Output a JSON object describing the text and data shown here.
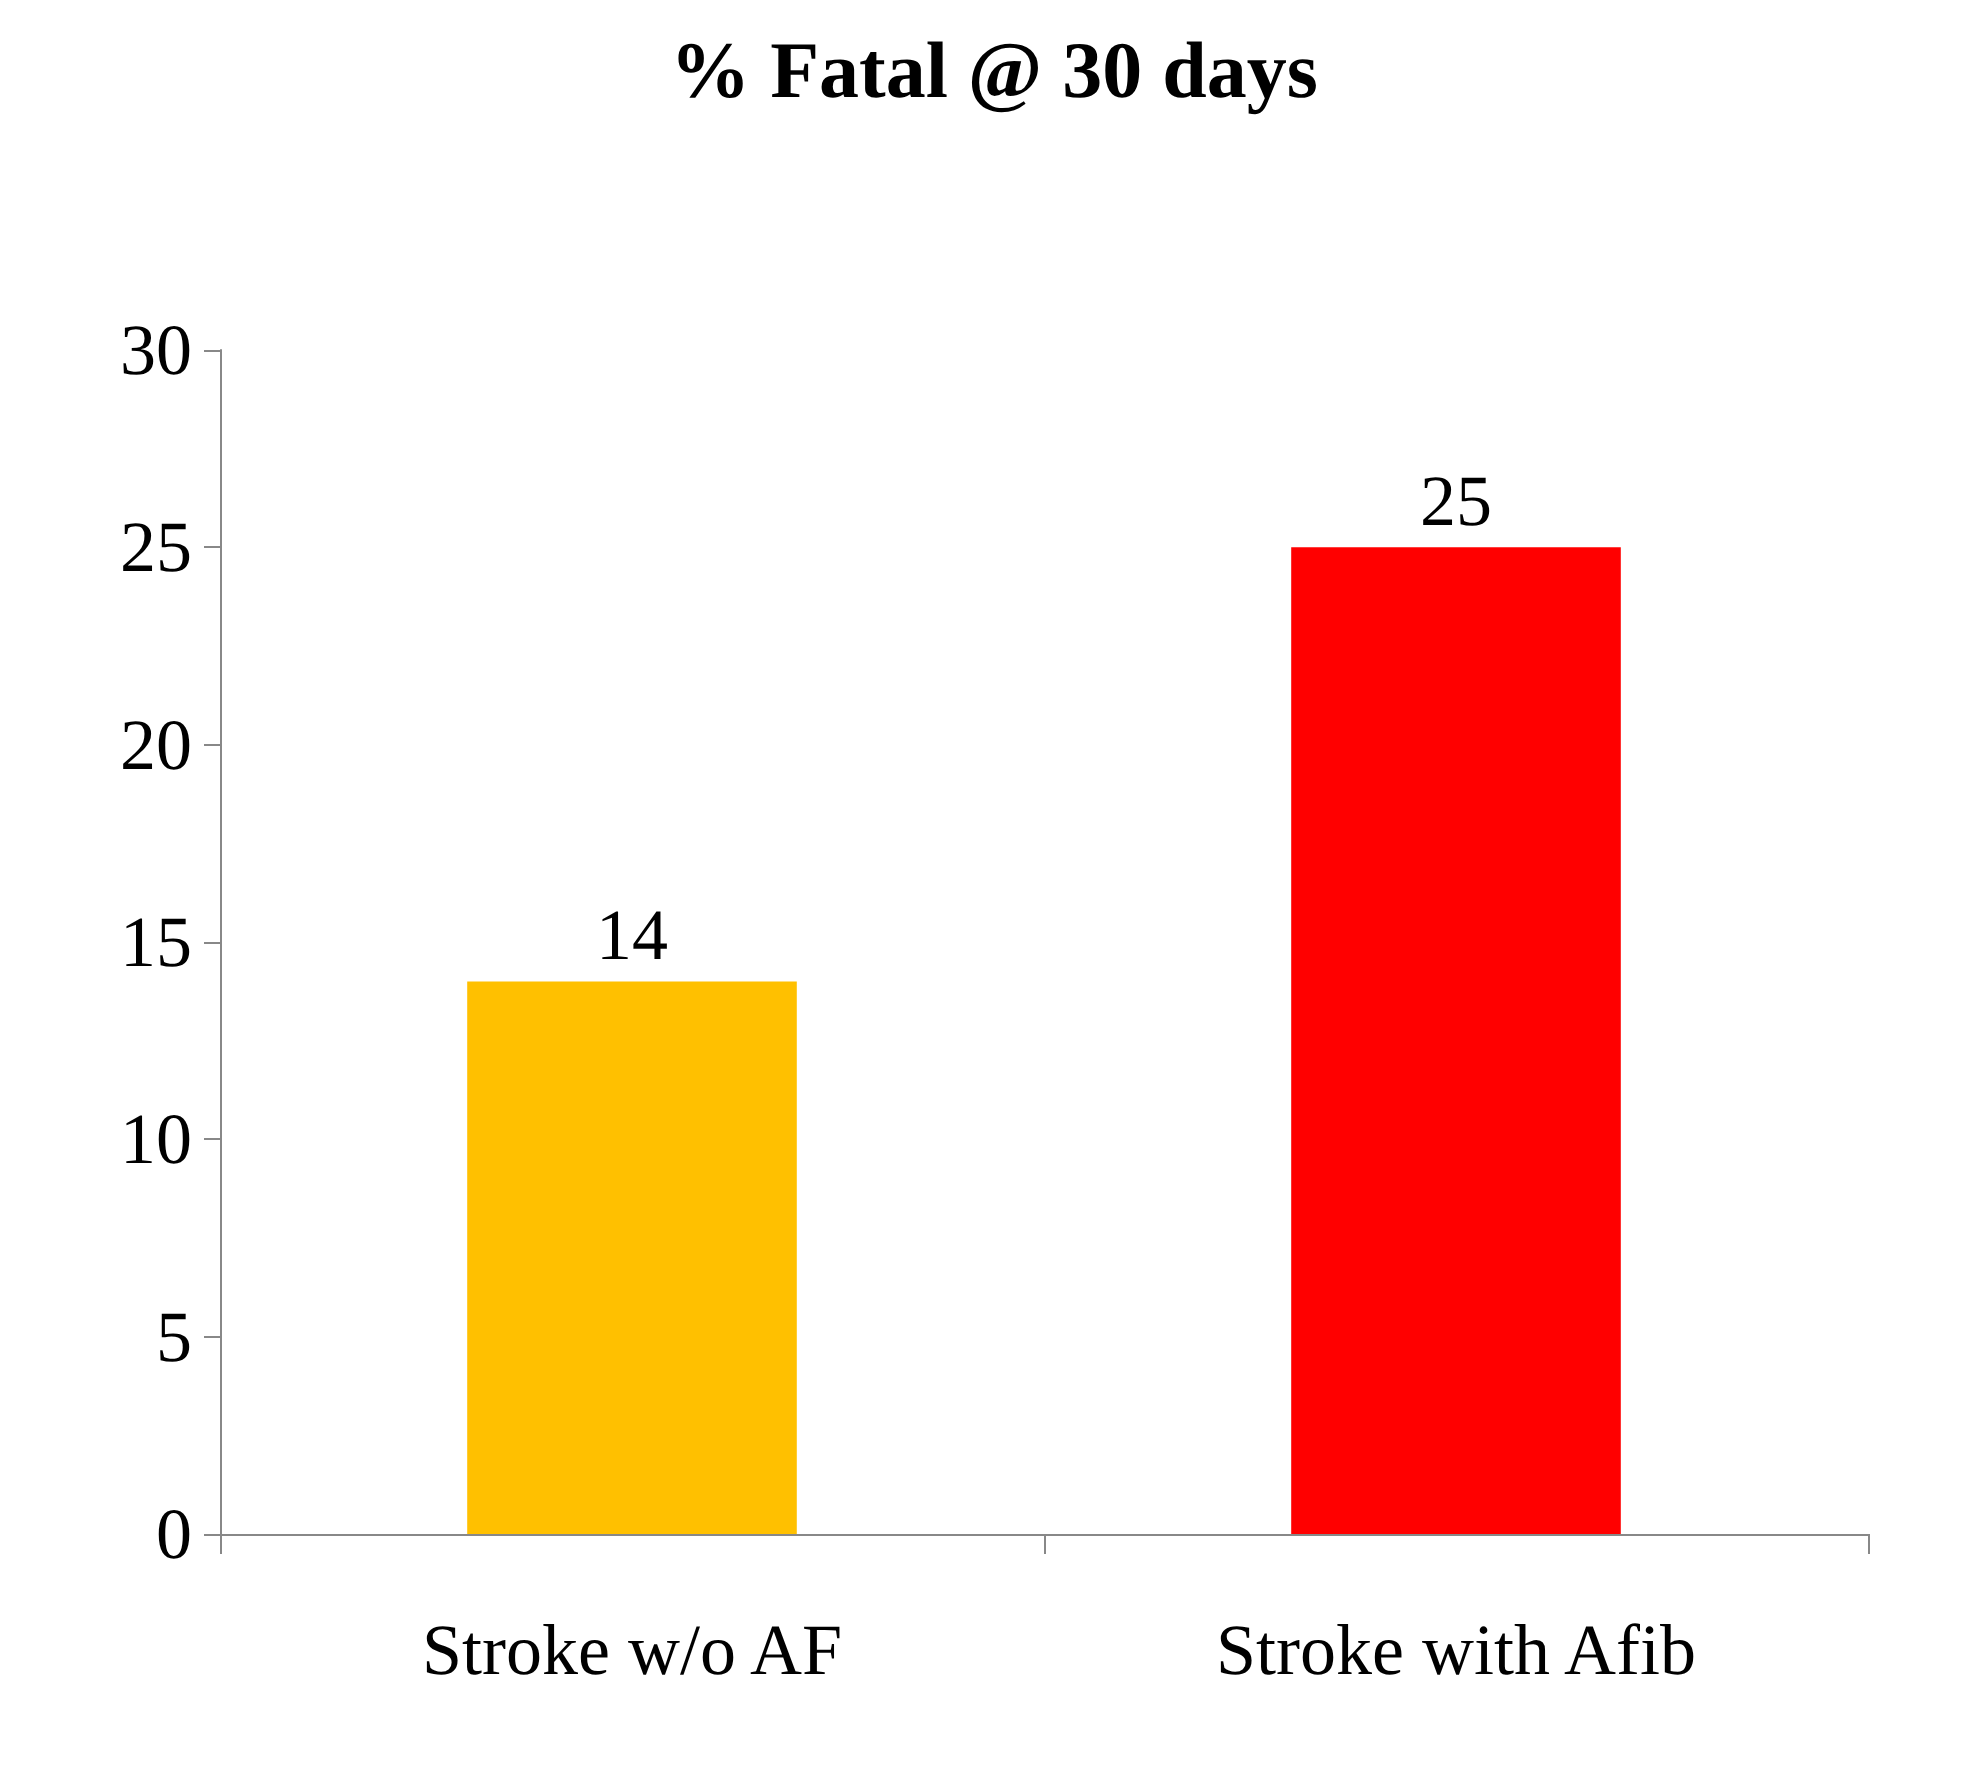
{
  "chart_data": {
    "type": "bar",
    "title": "% Fatal @ 30 days",
    "categories": [
      "Stroke w/o AF",
      "Stroke with Afib"
    ],
    "values": [
      14,
      25
    ],
    "colors": [
      "#ffc000",
      "#ff0000"
    ],
    "ylim": [
      0,
      30
    ],
    "yticks": [
      0,
      5,
      10,
      15,
      20,
      25,
      30
    ],
    "grid": false,
    "data_labels": true
  }
}
